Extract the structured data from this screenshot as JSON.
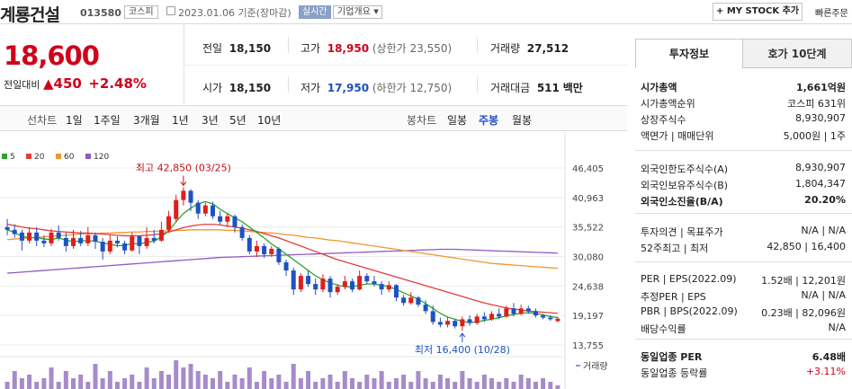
{
  "header": {
    "company_name": "계룡건설",
    "code": "013580",
    "market": "코스피",
    "date_text": "2023.01.06  기준(장마감)",
    "realtime_badge": "실시간",
    "company_info": "기업개요",
    "my_stock_button": "+ MY STOCK 추가",
    "quick_order": "빠른주문"
  },
  "quote": {
    "price": "18,600",
    "change_label": "전일대비",
    "change_value": "▲450",
    "change_rate": "+2.48%",
    "prev_close_label": "전일",
    "prev_close": "18,150",
    "high_label": "고가",
    "high": "18,950",
    "upper_limit": "(상한가 23,550)",
    "volume_label": "거래량",
    "volume": "27,512",
    "open_label": "시가",
    "open": "18,150",
    "low_label": "저가",
    "low": "17,950",
    "lower_limit": "(하한가 12,750)",
    "amount_label": "거래대금",
    "amount": "511",
    "amount_unit": "백만"
  },
  "chart_tabs": {
    "line_label": "선차트",
    "line_items": [
      "1일",
      "1주일",
      "3개월",
      "1년",
      "3년",
      "5년",
      "10년"
    ],
    "candle_label": "봉차트",
    "candle_items": [
      "일봉",
      "주봉",
      "월봉"
    ],
    "selected_candle": "주봉"
  },
  "chart_data": {
    "type": "candlestick",
    "ma_legend": [
      {
        "name": "5",
        "color": "#2aa52a"
      },
      {
        "name": "20",
        "color": "#e33c3c"
      },
      {
        "name": "60",
        "color": "#f29630"
      },
      {
        "name": "120",
        "color": "#8e5bc4"
      }
    ],
    "y_ticks": [
      "46,405",
      "40,963",
      "35,522",
      "30,080",
      "24,638",
      "19,197",
      "13,755"
    ],
    "ylim": [
      13755,
      46405
    ],
    "high_annotation": "최고 42,850 (03/25)",
    "low_annotation": "최저 16,400 (10/28)",
    "volume_label": "거래량",
    "candles": [
      {
        "o": 35500,
        "c": 35000,
        "h": 37000,
        "l": 34000
      },
      {
        "o": 35000,
        "c": 34200,
        "h": 36000,
        "l": 33500
      },
      {
        "o": 34500,
        "c": 33000,
        "h": 35000,
        "l": 31200
      },
      {
        "o": 33000,
        "c": 34500,
        "h": 35500,
        "l": 32500
      },
      {
        "o": 34500,
        "c": 33000,
        "h": 35500,
        "l": 32000
      },
      {
        "o": 33000,
        "c": 32500,
        "h": 34000,
        "l": 31800
      },
      {
        "o": 32500,
        "c": 34500,
        "h": 35200,
        "l": 32000
      },
      {
        "o": 34500,
        "c": 33500,
        "h": 35800,
        "l": 33000
      },
      {
        "o": 33500,
        "c": 32000,
        "h": 34500,
        "l": 31000
      },
      {
        "o": 32000,
        "c": 33500,
        "h": 35000,
        "l": 31500
      },
      {
        "o": 33500,
        "c": 32500,
        "h": 34800,
        "l": 32000
      },
      {
        "o": 32500,
        "c": 34000,
        "h": 35500,
        "l": 32000
      },
      {
        "o": 34000,
        "c": 32800,
        "h": 34500,
        "l": 31500
      },
      {
        "o": 32800,
        "c": 31000,
        "h": 33500,
        "l": 29500
      },
      {
        "o": 31000,
        "c": 33000,
        "h": 34000,
        "l": 30500
      },
      {
        "o": 33000,
        "c": 32500,
        "h": 33800,
        "l": 31800
      },
      {
        "o": 32500,
        "c": 31200,
        "h": 33000,
        "l": 30500
      },
      {
        "o": 31200,
        "c": 33800,
        "h": 34500,
        "l": 31000
      },
      {
        "o": 33800,
        "c": 32000,
        "h": 34000,
        "l": 30500
      },
      {
        "o": 32000,
        "c": 33500,
        "h": 35500,
        "l": 31500
      },
      {
        "o": 33500,
        "c": 33000,
        "h": 35000,
        "l": 32500
      },
      {
        "o": 33000,
        "c": 35000,
        "h": 36500,
        "l": 32800
      },
      {
        "o": 35000,
        "c": 37500,
        "h": 38500,
        "l": 34500
      },
      {
        "o": 37000,
        "c": 40500,
        "h": 41500,
        "l": 36500
      },
      {
        "o": 40500,
        "c": 42200,
        "h": 42850,
        "l": 39500
      },
      {
        "o": 42200,
        "c": 40000,
        "h": 42500,
        "l": 38500
      },
      {
        "o": 40000,
        "c": 38000,
        "h": 40500,
        "l": 37000
      },
      {
        "o": 38000,
        "c": 39500,
        "h": 40000,
        "l": 37500
      },
      {
        "o": 39500,
        "c": 37500,
        "h": 40200,
        "l": 37000
      },
      {
        "o": 37500,
        "c": 36500,
        "h": 38500,
        "l": 36000
      },
      {
        "o": 36500,
        "c": 37500,
        "h": 38000,
        "l": 35500
      },
      {
        "o": 37500,
        "c": 35500,
        "h": 37800,
        "l": 34500
      },
      {
        "o": 35500,
        "c": 33500,
        "h": 36000,
        "l": 33000
      },
      {
        "o": 33500,
        "c": 31000,
        "h": 34000,
        "l": 30500
      },
      {
        "o": 31000,
        "c": 32000,
        "h": 33000,
        "l": 30000
      },
      {
        "o": 32000,
        "c": 30500,
        "h": 32500,
        "l": 29800
      },
      {
        "o": 30500,
        "c": 31500,
        "h": 32000,
        "l": 30000
      },
      {
        "o": 31500,
        "c": 29000,
        "h": 31800,
        "l": 28500
      },
      {
        "o": 29000,
        "c": 27500,
        "h": 29500,
        "l": 26500
      },
      {
        "o": 27500,
        "c": 24000,
        "h": 28000,
        "l": 23000
      },
      {
        "o": 24000,
        "c": 26500,
        "h": 27000,
        "l": 23500
      },
      {
        "o": 26500,
        "c": 25000,
        "h": 27500,
        "l": 24500
      },
      {
        "o": 25000,
        "c": 24000,
        "h": 26000,
        "l": 23000
      },
      {
        "o": 24000,
        "c": 26000,
        "h": 26800,
        "l": 23500
      },
      {
        "o": 26000,
        "c": 23500,
        "h": 26500,
        "l": 22500
      },
      {
        "o": 23500,
        "c": 24500,
        "h": 25000,
        "l": 23000
      },
      {
        "o": 24500,
        "c": 25500,
        "h": 26500,
        "l": 24000
      },
      {
        "o": 25500,
        "c": 24000,
        "h": 26000,
        "l": 23500
      },
      {
        "o": 24000,
        "c": 26500,
        "h": 27500,
        "l": 23800
      },
      {
        "o": 26500,
        "c": 25500,
        "h": 27000,
        "l": 25000
      },
      {
        "o": 25500,
        "c": 25000,
        "h": 26500,
        "l": 24500
      },
      {
        "o": 25000,
        "c": 24000,
        "h": 25500,
        "l": 23000
      },
      {
        "o": 24000,
        "c": 24800,
        "h": 25500,
        "l": 23500
      },
      {
        "o": 24800,
        "c": 22500,
        "h": 25000,
        "l": 21800
      },
      {
        "o": 22500,
        "c": 21500,
        "h": 23000,
        "l": 21000
      },
      {
        "o": 21500,
        "c": 22500,
        "h": 23500,
        "l": 21200
      },
      {
        "o": 22500,
        "c": 21200,
        "h": 22800,
        "l": 20800
      },
      {
        "o": 21200,
        "c": 20000,
        "h": 22000,
        "l": 19500
      },
      {
        "o": 20000,
        "c": 18000,
        "h": 21000,
        "l": 17500
      },
      {
        "o": 18000,
        "c": 17500,
        "h": 18800,
        "l": 17000
      },
      {
        "o": 17500,
        "c": 18200,
        "h": 19000,
        "l": 17000
      },
      {
        "o": 18200,
        "c": 17200,
        "h": 18500,
        "l": 16800
      },
      {
        "o": 17200,
        "c": 18500,
        "h": 19000,
        "l": 16400
      },
      {
        "o": 18500,
        "c": 17800,
        "h": 19200,
        "l": 17300
      },
      {
        "o": 17800,
        "c": 19000,
        "h": 19500,
        "l": 17500
      },
      {
        "o": 19000,
        "c": 18500,
        "h": 19800,
        "l": 18000
      },
      {
        "o": 18500,
        "c": 19500,
        "h": 20000,
        "l": 18200
      },
      {
        "o": 19500,
        "c": 19000,
        "h": 20500,
        "l": 18500
      },
      {
        "o": 19000,
        "c": 20500,
        "h": 21000,
        "l": 18800
      },
      {
        "o": 20500,
        "c": 19500,
        "h": 21500,
        "l": 19000
      },
      {
        "o": 19500,
        "c": 20500,
        "h": 21200,
        "l": 19200
      },
      {
        "o": 20500,
        "c": 20000,
        "h": 21000,
        "l": 19500
      },
      {
        "o": 20000,
        "c": 19200,
        "h": 20500,
        "l": 18800
      },
      {
        "o": 19200,
        "c": 18800,
        "h": 19500,
        "l": 18500
      },
      {
        "o": 18800,
        "c": 18500,
        "h": 19300,
        "l": 18200
      },
      {
        "o": 18150,
        "c": 18600,
        "h": 18950,
        "l": 17950
      }
    ],
    "ma5": [
      35000,
      34500,
      33800,
      33500,
      33600,
      33300,
      33200,
      33500,
      33100,
      32800,
      33000,
      33000,
      32900,
      32600,
      32300,
      32100,
      32100,
      32500,
      32400,
      32700,
      32900,
      33700,
      34800,
      36500,
      38000,
      39000,
      39800,
      40200,
      39800,
      38800,
      38000,
      37200,
      36500,
      35500,
      34500,
      33500,
      32400,
      31500,
      30500,
      29500,
      28500,
      27500,
      26500,
      25800,
      25200,
      24800,
      24500,
      24500,
      24800,
      25000,
      25000,
      24800,
      24500,
      24000,
      23400,
      22800,
      22200,
      21400,
      20500,
      19600,
      18900,
      18500,
      18100,
      17900,
      18000,
      18300,
      18500,
      18800,
      19100,
      19400,
      19600,
      19700,
      19600,
      19300,
      19000,
      18800
    ],
    "ma20": [
      36000,
      35800,
      35500,
      35300,
      35200,
      35000,
      34800,
      34700,
      34600,
      34500,
      34400,
      34400,
      34300,
      34200,
      34100,
      34000,
      33900,
      33900,
      33900,
      34000,
      34100,
      34300,
      34600,
      35000,
      35400,
      35700,
      35900,
      36000,
      36000,
      35900,
      35700,
      35500,
      35300,
      35000,
      34700,
      34300,
      33900,
      33500,
      33000,
      32500,
      32000,
      31500,
      31000,
      30500,
      30000,
      29500,
      29100,
      28700,
      28300,
      27900,
      27500,
      27100,
      26700,
      26300,
      25900,
      25500,
      25100,
      24700,
      24300,
      23900,
      23500,
      23100,
      22700,
      22300,
      21900,
      21500,
      21200,
      20900,
      20600,
      20400,
      20200,
      20000,
      19900,
      19800,
      19700,
      19600
    ],
    "ma60": [
      33200,
      33300,
      33400,
      33500,
      33600,
      33700,
      33800,
      33900,
      34000,
      34100,
      34200,
      34300,
      34300,
      34400,
      34400,
      34500,
      34500,
      34600,
      34600,
      34700,
      34700,
      34800,
      34800,
      34900,
      34900,
      35000,
      35000,
      35000,
      35000,
      35000,
      34900,
      34900,
      34800,
      34700,
      34600,
      34500,
      34400,
      34300,
      34100,
      34000,
      33800,
      33600,
      33500,
      33300,
      33100,
      33000,
      32800,
      32600,
      32400,
      32200,
      32000,
      31800,
      31600,
      31400,
      31200,
      31000,
      30800,
      30600,
      30400,
      30200,
      30000,
      29800,
      29600,
      29400,
      29200,
      29000,
      28800,
      28700,
      28600,
      28500,
      28400,
      28300,
      28200,
      28100,
      28000,
      27900
    ],
    "ma120": [
      27000,
      27100,
      27200,
      27300,
      27400,
      27500,
      27600,
      27700,
      27800,
      27900,
      28000,
      28100,
      28200,
      28300,
      28400,
      28500,
      28600,
      28700,
      28800,
      28900,
      29000,
      29100,
      29200,
      29300,
      29400,
      29500,
      29600,
      29700,
      29800,
      29900,
      29950,
      30000,
      30050,
      30100,
      30150,
      30200,
      30250,
      30300,
      30350,
      30400,
      30450,
      30500,
      30550,
      30600,
      30650,
      30700,
      30750,
      30800,
      30850,
      30900,
      30950,
      31000,
      31050,
      31100,
      31150,
      31200,
      31250,
      31300,
      31350,
      31400,
      31400,
      31400,
      31350,
      31300,
      31250,
      31200,
      31150,
      31100,
      31050,
      31000,
      30950,
      30900,
      30850,
      30800,
      30750,
      30700
    ],
    "volume": [
      2,
      5,
      3,
      4,
      2,
      3,
      6,
      2,
      5,
      3,
      4,
      2,
      7,
      3,
      5,
      2,
      3,
      4,
      2,
      6,
      3,
      5,
      4,
      8,
      6,
      7,
      5,
      4,
      3,
      5,
      2,
      4,
      3,
      6,
      2,
      5,
      3,
      4,
      2,
      7,
      3,
      5,
      2,
      3,
      4,
      2,
      5,
      3,
      2,
      4,
      3,
      5,
      2,
      3,
      4,
      2,
      5,
      3,
      2,
      4,
      3,
      2,
      5,
      3,
      2,
      4,
      3,
      2,
      3,
      2,
      4,
      3,
      2,
      3,
      2,
      1
    ]
  },
  "invest_panel": {
    "tab_active": "투자정보",
    "tab_other": "호가 10단계",
    "rows": [
      {
        "label": "시가총액",
        "value": "1,661억원",
        "bold": true
      },
      {
        "label": "시가총액순위",
        "value": "코스피 631위"
      },
      {
        "label": "상장주식수",
        "value": "8,930,907"
      },
      {
        "label": "액면가 | 매매단위",
        "value": "5,000원  |  1주"
      },
      {
        "label": "외국인한도주식수(A)",
        "value": "8,930,907"
      },
      {
        "label": "외국인보유주식수(B)",
        "value": "1,804,347"
      },
      {
        "label": "외국인소진율(B/A)",
        "value": "20.20%",
        "bold": true
      },
      {
        "label": "투자의견 | 목표주가",
        "value": "N/A  |  N/A"
      },
      {
        "label": "52주최고 | 최저",
        "value": "42,850  |  16,400"
      },
      {
        "label": "PER | EPS(2022.09)",
        "value": "1.52배  |  12,201원"
      },
      {
        "label": "추정PER | EPS",
        "value": "N/A  |  N/A"
      },
      {
        "label": "PBR | BPS(2022.09)",
        "value": "0.23배  |  82,096원"
      },
      {
        "label": "배당수익률",
        "value": "N/A"
      },
      {
        "label": "동일업종 PER",
        "value": "6.48배",
        "bold": true
      },
      {
        "label": "동일업종 등락률",
        "value": "+3.11%",
        "red": true
      }
    ]
  }
}
